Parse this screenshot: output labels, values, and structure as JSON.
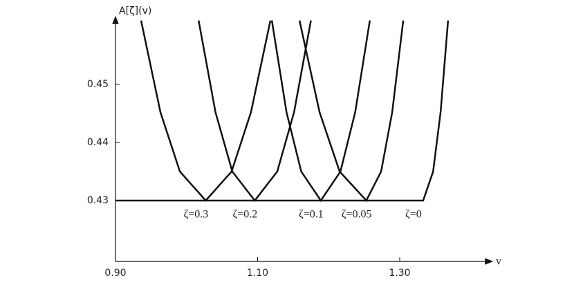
{
  "chart_data": {
    "type": "line",
    "y_label": "A[ζ](v)",
    "x_label": "v",
    "xlim": [
      0.9,
      1.4236
    ],
    "ylim": [
      0.41952,
      0.46095
    ],
    "xticks": [
      {
        "value": 0.9,
        "label": "0.90"
      },
      {
        "value": 1.1,
        "label": "1.10"
      },
      {
        "value": 1.3,
        "label": "1.30"
      }
    ],
    "yticks": [
      0.43,
      0.44,
      0.45
    ],
    "color": "#111111",
    "series": [
      {
        "name": "ζ=0.3",
        "x": [
          0.936,
          0.9633,
          0.9906,
          1.027,
          1.0634,
          1.0907,
          1.118
        ],
        "values": [
          0.461,
          0.4452,
          0.435,
          0.43,
          0.435,
          0.4452,
          0.461
        ]
      },
      {
        "name": "ζ=0.2",
        "x": [
          1.017,
          1.0407,
          1.0644,
          1.096,
          1.1276,
          1.1513,
          1.175
        ],
        "values": [
          0.461,
          0.4452,
          0.435,
          0.43,
          0.435,
          0.4452,
          0.461
        ]
      },
      {
        "name": "ζ=0.1",
        "x": [
          1.12,
          1.1407,
          1.1614,
          1.189,
          1.2166,
          1.2373,
          1.258
        ],
        "values": [
          0.461,
          0.4452,
          0.435,
          0.43,
          0.435,
          0.4452,
          0.461
        ]
      },
      {
        "name": "ζ=0.05",
        "x": [
          1.159,
          1.1872,
          1.2154,
          1.253,
          1.2738,
          1.2894,
          1.305
        ],
        "values": [
          0.461,
          0.4452,
          0.435,
          0.43,
          0.435,
          0.4452,
          0.461
        ]
      },
      {
        "name": "ζ=0",
        "x": [
          0.9,
          1.333,
          1.347,
          1.3575,
          1.368
        ],
        "values": [
          0.43,
          0.43,
          0.435,
          0.4452,
          0.461
        ]
      }
    ]
  }
}
